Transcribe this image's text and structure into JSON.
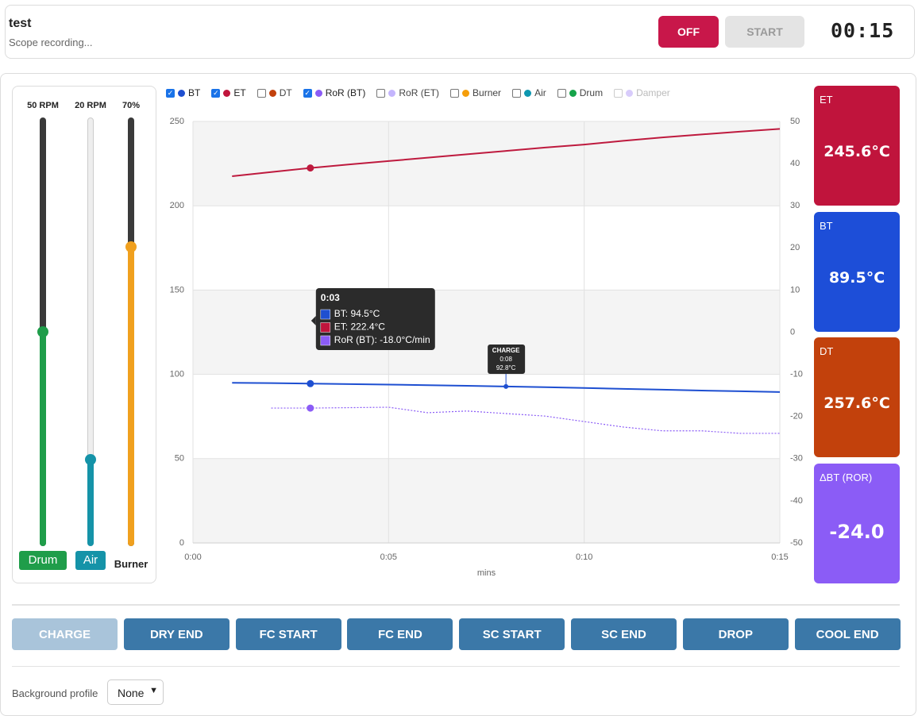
{
  "header": {
    "title": "test",
    "subtitle": "Scope recording...",
    "off_button": "OFF",
    "start_button": "START",
    "timer": "00:15"
  },
  "sliders": {
    "range": [
      0,
      100
    ],
    "items": [
      {
        "name": "Drum",
        "value": 50,
        "value_label": "50 RPM",
        "color": "#1f9d4a"
      },
      {
        "name": "Air",
        "value": 20,
        "value_label": "20 RPM",
        "color": "#1593a8"
      },
      {
        "name": "Burner",
        "value": 70,
        "value_label": "70%",
        "color": "#f0a01e"
      }
    ]
  },
  "legend": [
    {
      "name": "BT",
      "color": "#1f4fd0",
      "checked": true
    },
    {
      "name": "ET",
      "color": "#c0143c",
      "checked": true
    },
    {
      "name": "DT",
      "color": "#c2410c",
      "checked": false
    },
    {
      "name": "RoR (BT)",
      "color": "#8b5cf6",
      "checked": true
    },
    {
      "name": "RoR (ET)",
      "color": "#c4b5fd",
      "checked": false
    },
    {
      "name": "Burner",
      "color": "#f59e0b",
      "checked": false
    },
    {
      "name": "Air",
      "color": "#0e97b0",
      "checked": false
    },
    {
      "name": "Drum",
      "color": "#16a34a",
      "checked": false
    },
    {
      "name": "Damper",
      "color": "#d8ccfb",
      "checked": false,
      "disabled": true
    }
  ],
  "chart_data": {
    "type": "line",
    "x_label": "mins",
    "x": [
      1,
      2,
      3,
      4,
      5,
      6,
      7,
      8,
      9,
      10,
      11,
      12,
      13,
      14,
      15
    ],
    "xlim": [
      0,
      15
    ],
    "xticks": [
      {
        "value": 0,
        "label": "0:00"
      },
      {
        "value": 5,
        "label": "0:05"
      },
      {
        "value": 10,
        "label": "0:10"
      },
      {
        "value": 15,
        "label": "0:15"
      }
    ],
    "ylim": [
      0,
      250
    ],
    "yticks": [
      0,
      50,
      100,
      150,
      200,
      250
    ],
    "y2lim": [
      -50,
      50
    ],
    "y2ticks": [
      -50,
      -40,
      -30,
      -20,
      -10,
      0,
      10,
      20,
      30,
      40,
      50
    ],
    "grid": true,
    "series": [
      {
        "name": "ET",
        "color": "#be1a3e",
        "values": [
          217.5,
          220,
          222.4,
          224.5,
          226.5,
          228.5,
          230.5,
          232.5,
          234.5,
          236.3,
          238.5,
          240.5,
          242.3,
          244,
          245.6
        ]
      },
      {
        "name": "BT",
        "color": "#1e4fd1",
        "values": [
          95,
          94.8,
          94.5,
          94.2,
          93.9,
          93.6,
          93.2,
          92.8,
          92.4,
          91.9,
          91.4,
          90.9,
          90.4,
          90,
          89.5
        ]
      },
      {
        "name": "RoR (BT)",
        "color": "#8b5cf6",
        "axis": "y2",
        "dashed": true,
        "values": [
          null,
          -18,
          -18,
          -17.9,
          -17.8,
          -19.1,
          -18.7,
          -19.3,
          -19.9,
          -21.2,
          -22.5,
          -23.4,
          -23.4,
          -24,
          -24
        ]
      }
    ],
    "tooltip": {
      "x": {
        "value": 3,
        "label": "0:03"
      },
      "rows": [
        {
          "text": "BT: 94.5°C",
          "color": "#1f4fd0"
        },
        {
          "text": "ET: 222.4°C",
          "color": "#c0143c"
        },
        {
          "text": "RoR (BT): -18.0°C/min",
          "color": "#8b5cf6"
        }
      ]
    },
    "annotation": {
      "label": "CHARGE",
      "series": 1,
      "x": {
        "value": 8,
        "label": "0:08"
      },
      "value_label": "92.8°C"
    }
  },
  "readouts": [
    {
      "label": "ET",
      "value": "245.6°C",
      "color": "#c0143c"
    },
    {
      "label": "BT",
      "value": "89.5°C",
      "color": "#1d4ed8"
    },
    {
      "label": "DT",
      "value": "257.6°C",
      "color": "#c2410c"
    },
    {
      "label": "ΔBT (ROR)",
      "value": "-24.0",
      "color": "#8b5cf6"
    }
  ],
  "events": [
    {
      "label": "CHARGE",
      "disabled": true
    },
    {
      "label": "DRY END"
    },
    {
      "label": "FC START"
    },
    {
      "label": "FC END"
    },
    {
      "label": "SC START"
    },
    {
      "label": "SC END"
    },
    {
      "label": "DROP"
    },
    {
      "label": "COOL END"
    }
  ],
  "background_profile": {
    "label": "Background profile",
    "selected": "None"
  }
}
